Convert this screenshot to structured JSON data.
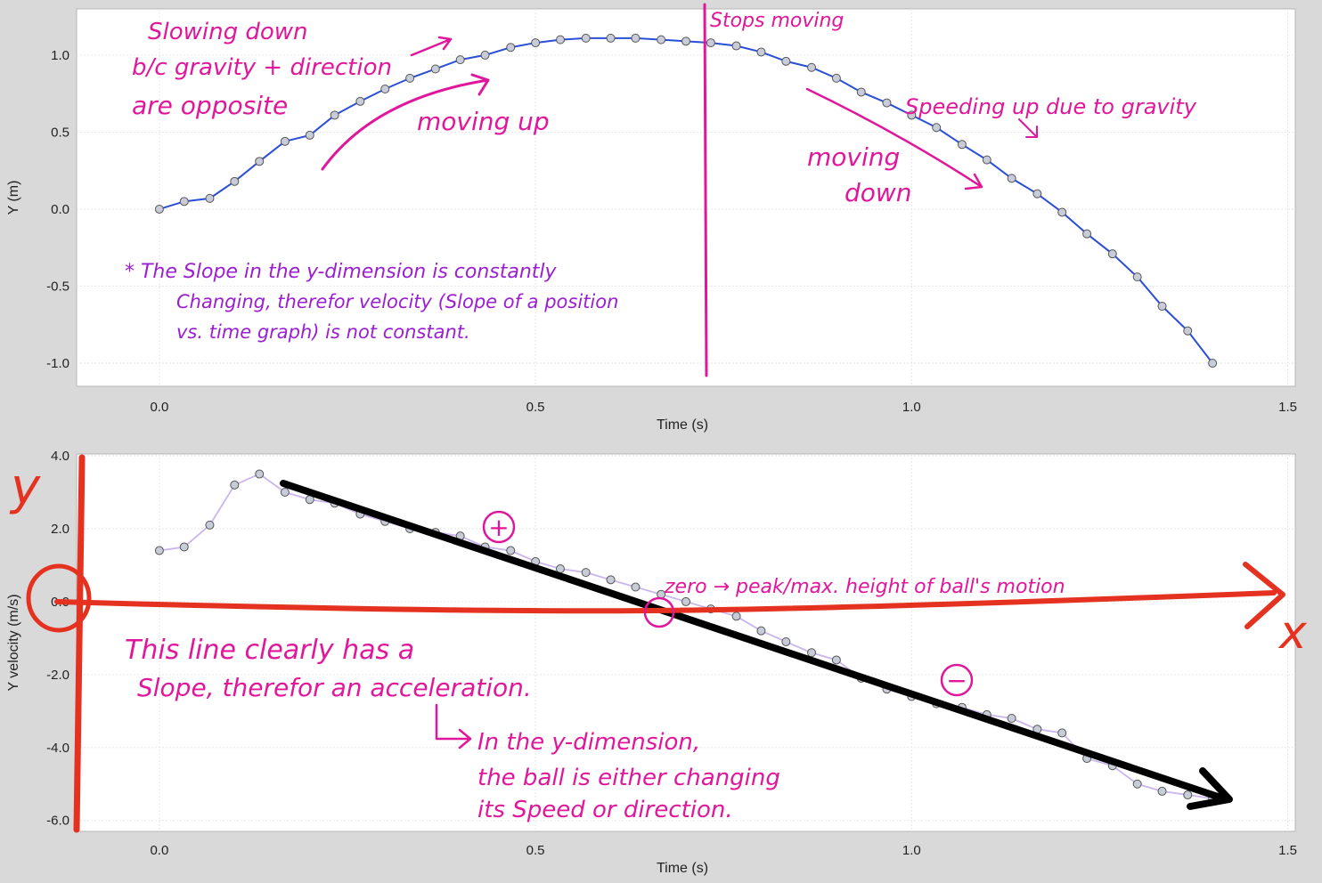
{
  "chart_data": [
    {
      "type": "scatter",
      "xlabel": "Time (s)",
      "ylabel": "Y (m)",
      "xlim": [
        -0.11,
        1.51
      ],
      "ylim": [
        -1.15,
        1.3
      ],
      "xticks": [
        "0.0",
        "0.5",
        "1.0",
        "1.5"
      ],
      "yticks": [
        "1.0",
        "0.5",
        "0.0",
        "-0.5",
        "-1.0"
      ],
      "line_color": "#2a4fd6",
      "marker_color": "#c7ccd8",
      "series": [
        {
          "x": [
            0.0,
            0.033,
            0.067,
            0.1,
            0.133,
            0.167,
            0.2,
            0.233,
            0.267,
            0.3,
            0.333,
            0.367,
            0.4,
            0.433,
            0.467,
            0.5,
            0.533,
            0.567,
            0.6,
            0.633,
            0.667,
            0.7,
            0.733,
            0.767,
            0.8,
            0.833,
            0.867,
            0.9,
            0.933,
            0.967,
            1.0,
            1.033,
            1.067,
            1.1,
            1.133,
            1.167,
            1.2,
            1.233,
            1.267,
            1.3,
            1.333,
            1.367,
            1.4
          ],
          "values": [
            0.0,
            0.05,
            0.07,
            0.18,
            0.31,
            0.44,
            0.48,
            0.61,
            0.7,
            0.78,
            0.85,
            0.91,
            0.97,
            1.0,
            1.05,
            1.08,
            1.1,
            1.11,
            1.11,
            1.11,
            1.1,
            1.09,
            1.08,
            1.06,
            1.02,
            0.96,
            0.92,
            0.85,
            0.76,
            0.69,
            0.61,
            0.53,
            0.42,
            0.32,
            0.2,
            0.1,
            -0.02,
            -0.16,
            -0.29,
            -0.44,
            -0.63,
            -0.79,
            -1.0
          ]
        }
      ]
    },
    {
      "type": "scatter",
      "xlabel": "Time (s)",
      "ylabel": "Y velocity (m/s)",
      "xlim": [
        -0.11,
        1.51
      ],
      "ylim": [
        -6.3,
        4.05
      ],
      "xticks": [
        "0.0",
        "0.5",
        "1.0",
        "1.5"
      ],
      "yticks": [
        "4.0",
        "2.0",
        "0.0",
        "-2.0",
        "-4.0",
        "-6.0"
      ],
      "line_color": "#c9b6ee",
      "marker_color": "#c7ccd8",
      "series": [
        {
          "x": [
            0.0,
            0.033,
            0.067,
            0.1,
            0.133,
            0.167,
            0.2,
            0.233,
            0.267,
            0.3,
            0.333,
            0.367,
            0.4,
            0.433,
            0.467,
            0.5,
            0.533,
            0.567,
            0.6,
            0.633,
            0.667,
            0.7,
            0.733,
            0.767,
            0.8,
            0.833,
            0.867,
            0.9,
            0.933,
            0.967,
            1.0,
            1.033,
            1.067,
            1.1,
            1.133,
            1.167,
            1.2,
            1.233,
            1.267,
            1.3,
            1.333,
            1.367,
            1.4
          ],
          "values": [
            1.4,
            1.5,
            2.1,
            3.2,
            3.5,
            3.0,
            2.8,
            2.7,
            2.4,
            2.2,
            2.0,
            1.9,
            1.8,
            1.5,
            1.4,
            1.1,
            0.9,
            0.8,
            0.6,
            0.4,
            0.2,
            0.0,
            -0.2,
            -0.4,
            -0.8,
            -1.1,
            -1.4,
            -1.6,
            -2.1,
            -2.4,
            -2.6,
            -2.8,
            -2.9,
            -3.1,
            -3.2,
            -3.5,
            -3.6,
            -4.3,
            -4.5,
            -5.0,
            -5.2,
            -5.3,
            -5.4
          ]
        }
      ]
    }
  ],
  "annotations": {
    "top": {
      "slowing": [
        "Slowing down",
        "b/c gravity + direction",
        "are opposite"
      ],
      "moving_up": "moving up",
      "stops": "Stops moving",
      "speeding": "Speeding up due to gravity",
      "moving_down": [
        "moving",
        "down"
      ],
      "slope_note": [
        "* The Slope in the y-dimension is constantly",
        "Changing, therefor velocity (Slope of a position",
        "vs. time graph) is not constant."
      ]
    },
    "bottom": {
      "y_letter": "y",
      "x_letter": "x",
      "plus": "+",
      "minus": "−",
      "zero_note": "zero → peak/max. height of ball's motion",
      "slope_line": [
        "This line clearly has a",
        "Slope, therefor an acceleration."
      ],
      "ydim": [
        "In the y-dimension,",
        "the ball is either changing",
        "its Speed or direction."
      ]
    }
  }
}
